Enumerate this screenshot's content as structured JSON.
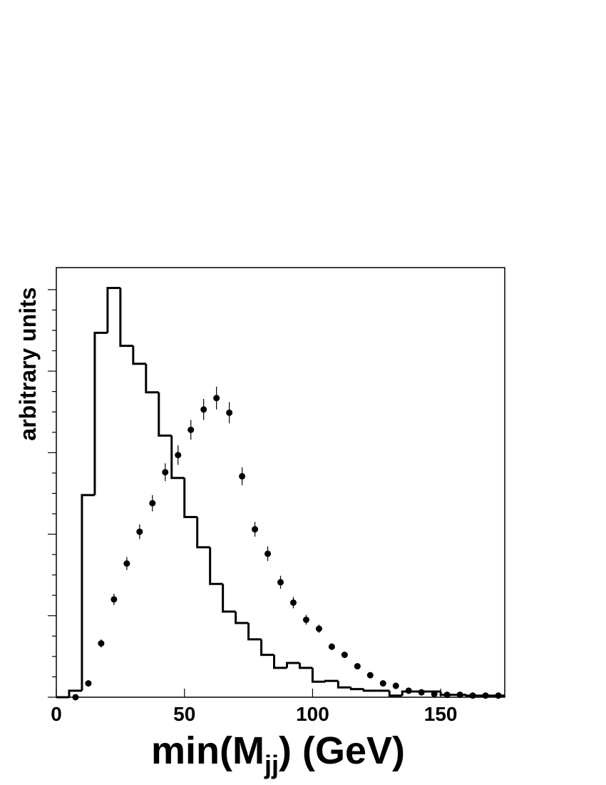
{
  "chart_data": {
    "type": "histogram",
    "xlabel": [
      "min(M",
      "jj",
      ") (GeV)"
    ],
    "ylabel": "arbitrary units",
    "xlim": [
      0,
      175
    ],
    "ylim": [
      0,
      5.27
    ],
    "xticks": [
      0,
      50,
      100,
      150
    ],
    "yticks": [
      0,
      0.25,
      0.5,
      0.75,
      1,
      1.25,
      1.5,
      1.75,
      2,
      2.25,
      2.5,
      2.75,
      3,
      3.25,
      3.5,
      3.75,
      4,
      4.25,
      4.5,
      4.75,
      5
    ],
    "bins": [
      0,
      5,
      10,
      15,
      20,
      25,
      30,
      35,
      40,
      45,
      50,
      55,
      60,
      65,
      70,
      75,
      80,
      85,
      90,
      95,
      100,
      105,
      110,
      115,
      120,
      125,
      130,
      135,
      140,
      145,
      150,
      155,
      160,
      165,
      170,
      175
    ],
    "counts": [
      0,
      0.08,
      2.48,
      4.47,
      5.02,
      4.31,
      4.09,
      3.74,
      3.21,
      2.69,
      2.21,
      1.84,
      1.39,
      1.05,
      0.91,
      0.71,
      0.52,
      0.36,
      0.42,
      0.36,
      0.19,
      0.2,
      0.12,
      0.1,
      0.08,
      0.08,
      0.02,
      0.07,
      0.07,
      0.07,
      0.03,
      0.03,
      0.02,
      0.02,
      0.02
    ],
    "color": "#000000",
    "points": {
      "x": [
        7.5,
        12.5,
        17.5,
        22.5,
        27.5,
        32.5,
        37.5,
        42.5,
        47.5,
        52.5,
        57.5,
        62.5,
        67.5,
        72.5,
        77.5,
        82.5,
        87.5,
        92.5,
        97.5,
        102.5,
        107.5,
        112.5,
        117.5,
        122.5,
        127.5,
        132.5,
        137.5,
        142.5,
        147.5,
        152.5,
        157.5,
        162.5,
        167.5,
        172.5
      ],
      "values": [
        0,
        0.17,
        0.66,
        1.2,
        1.64,
        2.03,
        2.38,
        2.76,
        2.97,
        3.28,
        3.53,
        3.67,
        3.49,
        2.71,
        2.06,
        1.76,
        1.41,
        1.16,
        0.95,
        0.84,
        0.62,
        0.52,
        0.38,
        0.27,
        0.17,
        0.14,
        0.08,
        0.06,
        0.04,
        0.03,
        0.03,
        0.02,
        0.02,
        0.02
      ],
      "errors": [
        0.01,
        0.02,
        0.05,
        0.07,
        0.08,
        0.09,
        0.1,
        0.11,
        0.12,
        0.12,
        0.13,
        0.14,
        0.13,
        0.11,
        0.09,
        0.09,
        0.08,
        0.07,
        0.06,
        0.05,
        0.04,
        0.03,
        0.03,
        0.02,
        0.02,
        0.02,
        0.01,
        0.01,
        0.01,
        0.01,
        0.01,
        0.01,
        0.01,
        0.01
      ]
    }
  }
}
